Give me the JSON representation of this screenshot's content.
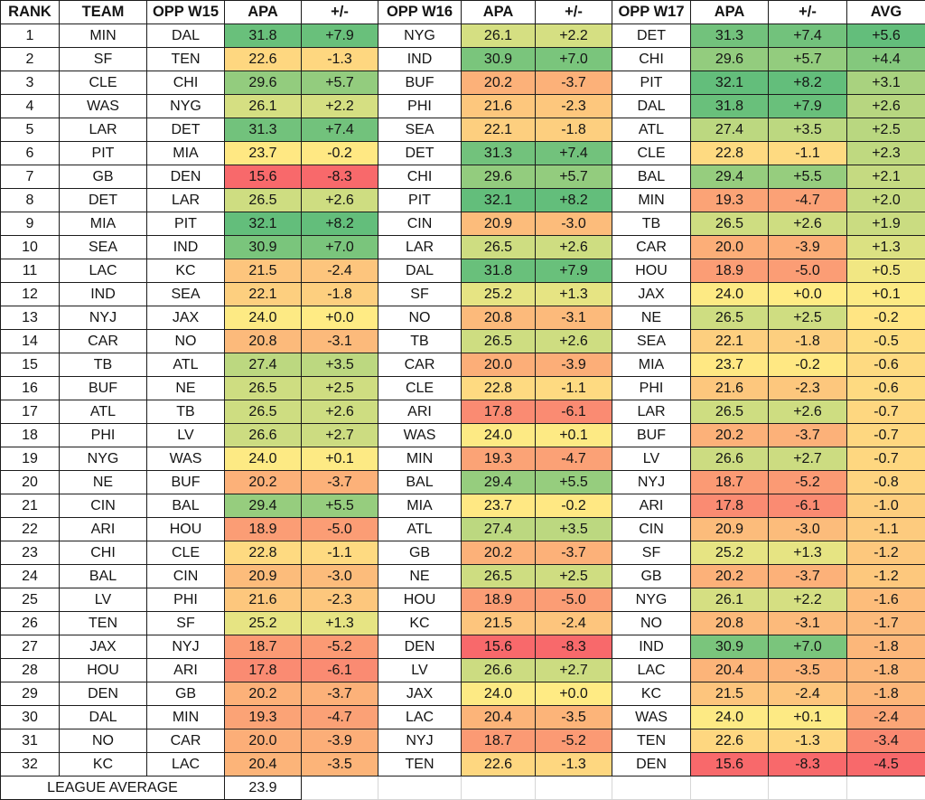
{
  "table": {
    "headers": [
      "RANK",
      "TEAM",
      "OPP W15",
      "APA",
      "+/-",
      "OPP W16",
      "APA",
      "+/-",
      "OPP W17",
      "APA",
      "+/-",
      "AVG"
    ],
    "rows": [
      [
        "1",
        "MIN",
        "DAL",
        "31.8",
        "+7.9",
        "NYG",
        "26.1",
        "+2.2",
        "DET",
        "31.3",
        "+7.4",
        "+5.6"
      ],
      [
        "2",
        "SF",
        "TEN",
        "22.6",
        "-1.3",
        "IND",
        "30.9",
        "+7.0",
        "CHI",
        "29.6",
        "+5.7",
        "+4.4"
      ],
      [
        "3",
        "CLE",
        "CHI",
        "29.6",
        "+5.7",
        "BUF",
        "20.2",
        "-3.7",
        "PIT",
        "32.1",
        "+8.2",
        "+3.1"
      ],
      [
        "4",
        "WAS",
        "NYG",
        "26.1",
        "+2.2",
        "PHI",
        "21.6",
        "-2.3",
        "DAL",
        "31.8",
        "+7.9",
        "+2.6"
      ],
      [
        "5",
        "LAR",
        "DET",
        "31.3",
        "+7.4",
        "SEA",
        "22.1",
        "-1.8",
        "ATL",
        "27.4",
        "+3.5",
        "+2.5"
      ],
      [
        "6",
        "PIT",
        "MIA",
        "23.7",
        "-0.2",
        "DET",
        "31.3",
        "+7.4",
        "CLE",
        "22.8",
        "-1.1",
        "+2.3"
      ],
      [
        "7",
        "GB",
        "DEN",
        "15.6",
        "-8.3",
        "CHI",
        "29.6",
        "+5.7",
        "BAL",
        "29.4",
        "+5.5",
        "+2.1"
      ],
      [
        "8",
        "DET",
        "LAR",
        "26.5",
        "+2.6",
        "PIT",
        "32.1",
        "+8.2",
        "MIN",
        "19.3",
        "-4.7",
        "+2.0"
      ],
      [
        "9",
        "MIA",
        "PIT",
        "32.1",
        "+8.2",
        "CIN",
        "20.9",
        "-3.0",
        "TB",
        "26.5",
        "+2.6",
        "+1.9"
      ],
      [
        "10",
        "SEA",
        "IND",
        "30.9",
        "+7.0",
        "LAR",
        "26.5",
        "+2.6",
        "CAR",
        "20.0",
        "-3.9",
        "+1.3"
      ],
      [
        "11",
        "LAC",
        "KC",
        "21.5",
        "-2.4",
        "DAL",
        "31.8",
        "+7.9",
        "HOU",
        "18.9",
        "-5.0",
        "+0.5"
      ],
      [
        "12",
        "IND",
        "SEA",
        "22.1",
        "-1.8",
        "SF",
        "25.2",
        "+1.3",
        "JAX",
        "24.0",
        "+0.0",
        "+0.1"
      ],
      [
        "13",
        "NYJ",
        "JAX",
        "24.0",
        "+0.0",
        "NO",
        "20.8",
        "-3.1",
        "NE",
        "26.5",
        "+2.5",
        "-0.2"
      ],
      [
        "14",
        "CAR",
        "NO",
        "20.8",
        "-3.1",
        "TB",
        "26.5",
        "+2.6",
        "SEA",
        "22.1",
        "-1.8",
        "-0.5"
      ],
      [
        "15",
        "TB",
        "ATL",
        "27.4",
        "+3.5",
        "CAR",
        "20.0",
        "-3.9",
        "MIA",
        "23.7",
        "-0.2",
        "-0.6"
      ],
      [
        "16",
        "BUF",
        "NE",
        "26.5",
        "+2.5",
        "CLE",
        "22.8",
        "-1.1",
        "PHI",
        "21.6",
        "-2.3",
        "-0.6"
      ],
      [
        "17",
        "ATL",
        "TB",
        "26.5",
        "+2.6",
        "ARI",
        "17.8",
        "-6.1",
        "LAR",
        "26.5",
        "+2.6",
        "-0.7"
      ],
      [
        "18",
        "PHI",
        "LV",
        "26.6",
        "+2.7",
        "WAS",
        "24.0",
        "+0.1",
        "BUF",
        "20.2",
        "-3.7",
        "-0.7"
      ],
      [
        "19",
        "NYG",
        "WAS",
        "24.0",
        "+0.1",
        "MIN",
        "19.3",
        "-4.7",
        "LV",
        "26.6",
        "+2.7",
        "-0.7"
      ],
      [
        "20",
        "NE",
        "BUF",
        "20.2",
        "-3.7",
        "BAL",
        "29.4",
        "+5.5",
        "NYJ",
        "18.7",
        "-5.2",
        "-0.8"
      ],
      [
        "21",
        "CIN",
        "BAL",
        "29.4",
        "+5.5",
        "MIA",
        "23.7",
        "-0.2",
        "ARI",
        "17.8",
        "-6.1",
        "-1.0"
      ],
      [
        "22",
        "ARI",
        "HOU",
        "18.9",
        "-5.0",
        "ATL",
        "27.4",
        "+3.5",
        "CIN",
        "20.9",
        "-3.0",
        "-1.1"
      ],
      [
        "23",
        "CHI",
        "CLE",
        "22.8",
        "-1.1",
        "GB",
        "20.2",
        "-3.7",
        "SF",
        "25.2",
        "+1.3",
        "-1.2"
      ],
      [
        "24",
        "BAL",
        "CIN",
        "20.9",
        "-3.0",
        "NE",
        "26.5",
        "+2.5",
        "GB",
        "20.2",
        "-3.7",
        "-1.2"
      ],
      [
        "25",
        "LV",
        "PHI",
        "21.6",
        "-2.3",
        "HOU",
        "18.9",
        "-5.0",
        "NYG",
        "26.1",
        "+2.2",
        "-1.6"
      ],
      [
        "26",
        "TEN",
        "SF",
        "25.2",
        "+1.3",
        "KC",
        "21.5",
        "-2.4",
        "NO",
        "20.8",
        "-3.1",
        "-1.7"
      ],
      [
        "27",
        "JAX",
        "NYJ",
        "18.7",
        "-5.2",
        "DEN",
        "15.6",
        "-8.3",
        "IND",
        "30.9",
        "+7.0",
        "-1.8"
      ],
      [
        "28",
        "HOU",
        "ARI",
        "17.8",
        "-6.1",
        "LV",
        "26.6",
        "+2.7",
        "LAC",
        "20.4",
        "-3.5",
        "-1.8"
      ],
      [
        "29",
        "DEN",
        "GB",
        "20.2",
        "-3.7",
        "JAX",
        "24.0",
        "+0.0",
        "KC",
        "21.5",
        "-2.4",
        "-1.8"
      ],
      [
        "30",
        "DAL",
        "MIN",
        "19.3",
        "-4.7",
        "LAC",
        "20.4",
        "-3.5",
        "WAS",
        "24.0",
        "+0.1",
        "-2.4"
      ],
      [
        "31",
        "NO",
        "CAR",
        "20.0",
        "-3.9",
        "NYJ",
        "18.7",
        "-5.2",
        "TEN",
        "22.6",
        "-1.3",
        "-3.4"
      ],
      [
        "32",
        "KC",
        "LAC",
        "20.4",
        "-3.5",
        "TEN",
        "22.6",
        "-1.3",
        "DEN",
        "15.6",
        "-8.3",
        "-4.5"
      ]
    ],
    "footer": {
      "label": "LEAGUE AVERAGE",
      "value": "23.9"
    }
  },
  "formatting": {
    "scale_colors": {
      "low": "#F8696B",
      "mid": "#FFEB84",
      "high": "#63BE7B"
    },
    "scales": {
      "apa": {
        "min": 15.6,
        "mid": 23.9,
        "max": 32.1
      },
      "diff": {
        "min": -8.3,
        "mid": 0.0,
        "max": 8.2
      },
      "avg": {
        "min": -4.5,
        "mid": 0.0,
        "max": 5.6
      }
    },
    "grid_border": "#1c1c1c",
    "faint_gridline": "#d6d6d6",
    "text_color": "#141414",
    "plain_cell_bg": "#ffffff"
  }
}
